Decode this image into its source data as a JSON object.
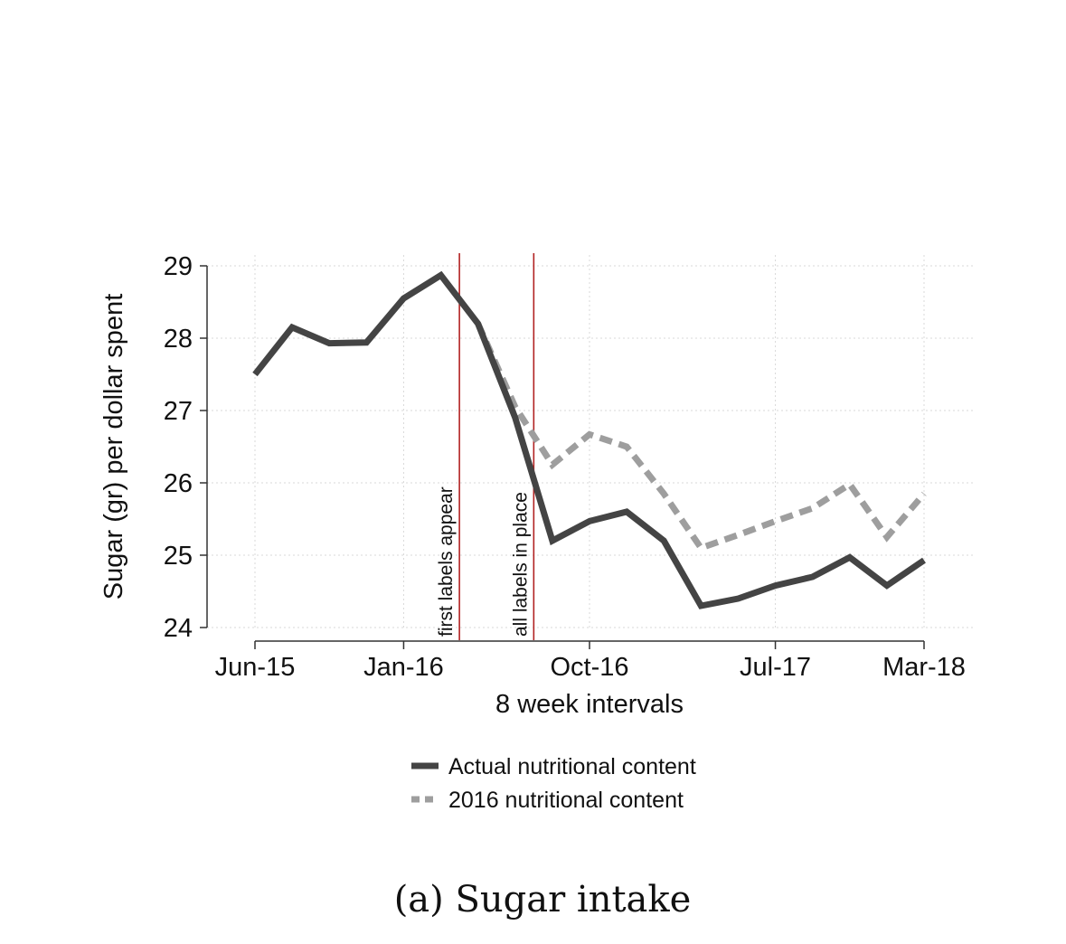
{
  "chart_data": {
    "type": "line",
    "caption": "(a) Sugar intake",
    "xlabel": "8 week intervals",
    "ylabel": "Sugar (gr) per dollar spent",
    "ylim": [
      24,
      29
    ],
    "yticks": [
      24,
      25,
      26,
      27,
      28,
      29
    ],
    "x_ticks": [
      {
        "label": "Jun-15",
        "i": 0
      },
      {
        "label": "Jan-16",
        "i": 4
      },
      {
        "label": "Oct-16",
        "i": 9
      },
      {
        "label": "Jul-17",
        "i": 14
      },
      {
        "label": "Mar-18",
        "i": 18
      }
    ],
    "n_periods": 19,
    "grid": true,
    "series": [
      {
        "name": "Actual nutritional content",
        "color": "#444444",
        "style": "solid",
        "start_index": 0,
        "values": [
          27.5,
          28.15,
          27.93,
          27.94,
          28.55,
          28.87,
          28.2,
          26.9,
          25.2,
          25.47,
          25.6,
          25.2,
          24.3,
          24.4,
          24.58,
          24.7,
          24.97,
          24.58,
          24.93
        ]
      },
      {
        "name": "2016 nutritional content",
        "color": "#9e9e9e",
        "style": "dashed",
        "start_index": 6,
        "values": [
          28.2,
          27.05,
          26.25,
          26.67,
          26.5,
          25.85,
          25.1,
          25.28,
          25.47,
          25.65,
          25.98,
          25.25,
          25.85
        ]
      }
    ],
    "vlines": [
      {
        "label": "first labels appear",
        "i": 5.5,
        "color": "#b22222"
      },
      {
        "label": "all labels in place",
        "i": 7.5,
        "color": "#b22222"
      }
    ],
    "legend_position": "bottom"
  }
}
